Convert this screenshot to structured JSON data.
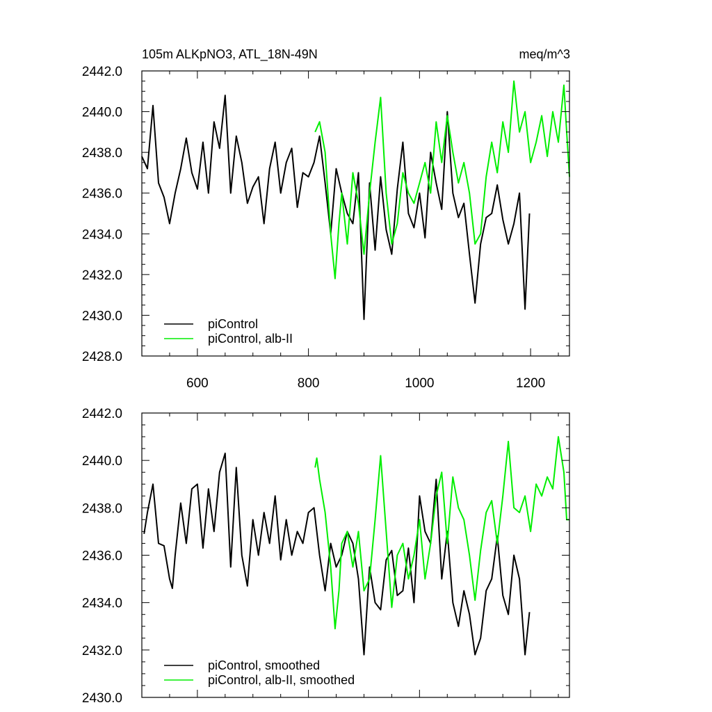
{
  "page": {
    "header_left": "105m ALKpNO3, ATL_18N-49N",
    "header_right": "meq/m^3"
  },
  "colors": {
    "picontrol": "#000000",
    "alb": "#00ee00",
    "frame": "#000000"
  },
  "chart_data": [
    {
      "type": "line",
      "title": "105m ALKpNO3, ATL_18N-49N",
      "units": "meq/m^3",
      "xlim": [
        500,
        1270
      ],
      "ylim": [
        2428.0,
        2442.0
      ],
      "x_ticks": [
        600,
        800,
        1000,
        1200
      ],
      "x_tick_labels": [
        "600",
        "800",
        "1000",
        "1200"
      ],
      "y_ticks": [
        2428.0,
        2430.0,
        2432.0,
        2434.0,
        2436.0,
        2438.0,
        2440.0,
        2442.0
      ],
      "y_tick_labels": [
        "2428.0",
        "2430.0",
        "2432.0",
        "2434.0",
        "2436.0",
        "2438.0",
        "2440.0",
        "2442.0"
      ],
      "legend_position": "bottom-left",
      "series": [
        {
          "name": "piControl",
          "color": "#000000",
          "x": [
            500,
            510,
            520,
            530,
            540,
            550,
            560,
            570,
            580,
            590,
            600,
            610,
            620,
            630,
            640,
            650,
            660,
            670,
            680,
            690,
            700,
            710,
            720,
            730,
            740,
            750,
            760,
            770,
            780,
            790,
            800,
            810,
            820,
            830,
            840,
            850,
            860,
            870,
            880,
            890,
            900,
            910,
            920,
            930,
            940,
            950,
            960,
            970,
            980,
            990,
            1000,
            1010,
            1020,
            1030,
            1040,
            1050,
            1060,
            1070,
            1080,
            1090,
            1100,
            1110,
            1120,
            1130,
            1140,
            1150,
            1160,
            1170,
            1180,
            1190,
            1198
          ],
          "y": [
            2437.8,
            2437.2,
            2440.3,
            2436.5,
            2435.8,
            2434.5,
            2436.0,
            2437.2,
            2438.7,
            2437.0,
            2436.2,
            2438.5,
            2436.0,
            2439.5,
            2438.2,
            2440.8,
            2436.0,
            2438.8,
            2437.5,
            2435.5,
            2436.3,
            2436.8,
            2434.5,
            2437.2,
            2438.5,
            2436.0,
            2437.5,
            2438.2,
            2435.3,
            2437.0,
            2436.8,
            2437.5,
            2438.8,
            2436.5,
            2434.0,
            2437.2,
            2436.0,
            2435.0,
            2434.5,
            2437.0,
            2429.8,
            2436.5,
            2433.2,
            2436.8,
            2434.2,
            2433.0,
            2436.2,
            2438.5,
            2435.0,
            2434.3,
            2436.0,
            2433.8,
            2438.0,
            2436.5,
            2435.2,
            2440.0,
            2436.0,
            2434.8,
            2435.5,
            2433.0,
            2430.6,
            2433.5,
            2434.8,
            2435.0,
            2436.4,
            2434.7,
            2433.5,
            2434.5,
            2436.0,
            2430.3,
            2435.0
          ]
        },
        {
          "name": "piControl, alb-II",
          "color": "#00ee00",
          "x": [
            812,
            820,
            830,
            840,
            848,
            855,
            860,
            870,
            880,
            890,
            900,
            910,
            920,
            930,
            940,
            950,
            960,
            970,
            980,
            990,
            1000,
            1010,
            1020,
            1030,
            1040,
            1050,
            1060,
            1070,
            1080,
            1090,
            1100,
            1110,
            1120,
            1130,
            1140,
            1150,
            1160,
            1170,
            1180,
            1190,
            1200,
            1210,
            1220,
            1230,
            1240,
            1250,
            1260,
            1265,
            1270
          ],
          "y": [
            2439.0,
            2439.5,
            2438.0,
            2434.0,
            2431.8,
            2434.5,
            2436.0,
            2433.5,
            2437.0,
            2435.5,
            2433.0,
            2436.0,
            2438.5,
            2440.7,
            2436.0,
            2433.5,
            2434.5,
            2437.0,
            2436.0,
            2435.5,
            2436.5,
            2437.5,
            2436.0,
            2439.5,
            2437.5,
            2439.8,
            2438.0,
            2436.5,
            2437.5,
            2436.0,
            2433.5,
            2434.0,
            2436.8,
            2438.5,
            2437.0,
            2439.5,
            2438.0,
            2441.5,
            2439.0,
            2440.0,
            2437.5,
            2438.5,
            2439.8,
            2437.8,
            2440.0,
            2438.5,
            2441.3,
            2439.0,
            2436.8
          ]
        }
      ]
    },
    {
      "type": "line",
      "xlim": [
        500,
        1270
      ],
      "ylim": [
        2430.0,
        2442.0
      ],
      "x_ticks": [
        600,
        800,
        1000,
        1200
      ],
      "y_ticks": [
        2430.0,
        2432.0,
        2434.0,
        2436.0,
        2438.0,
        2440.0,
        2442.0
      ],
      "y_tick_labels": [
        "2430.0",
        "2432.0",
        "2434.0",
        "2436.0",
        "2438.0",
        "2440.0",
        "2442.0"
      ],
      "legend_position": "bottom-left",
      "series": [
        {
          "name": "piControl, smoothed",
          "color": "#000000",
          "x": [
            504,
            510,
            520,
            530,
            540,
            550,
            555,
            560,
            570,
            580,
            590,
            600,
            610,
            620,
            630,
            640,
            650,
            660,
            670,
            680,
            690,
            700,
            710,
            720,
            730,
            740,
            750,
            760,
            770,
            780,
            790,
            800,
            810,
            820,
            830,
            840,
            850,
            860,
            870,
            880,
            890,
            900,
            910,
            920,
            930,
            940,
            950,
            960,
            970,
            980,
            990,
            1000,
            1010,
            1020,
            1030,
            1040,
            1050,
            1060,
            1070,
            1080,
            1090,
            1100,
            1110,
            1120,
            1130,
            1140,
            1150,
            1160,
            1170,
            1180,
            1190,
            1198
          ],
          "y": [
            2436.9,
            2437.8,
            2439.0,
            2436.5,
            2436.4,
            2435.0,
            2434.6,
            2436.0,
            2438.2,
            2436.5,
            2438.8,
            2439.0,
            2436.3,
            2438.8,
            2437.0,
            2439.5,
            2440.3,
            2435.5,
            2439.7,
            2436.0,
            2434.7,
            2437.5,
            2436.0,
            2437.8,
            2436.5,
            2438.5,
            2435.8,
            2437.5,
            2436.0,
            2437.0,
            2436.5,
            2437.8,
            2438.0,
            2436.0,
            2434.5,
            2436.5,
            2435.5,
            2436.0,
            2437.0,
            2436.5,
            2435.0,
            2431.8,
            2435.5,
            2434.0,
            2433.7,
            2435.8,
            2436.2,
            2434.3,
            2434.5,
            2436.3,
            2434.0,
            2438.5,
            2437.0,
            2436.5,
            2439.2,
            2435.0,
            2437.0,
            2434.0,
            2433.0,
            2434.5,
            2433.5,
            2431.8,
            2432.5,
            2434.5,
            2435.0,
            2436.8,
            2434.3,
            2433.5,
            2436.0,
            2435.0,
            2431.8,
            2433.6
          ]
        },
        {
          "name": "piControl, alb-II, smoothed",
          "color": "#00ee00",
          "x": [
            812,
            815,
            820,
            830,
            840,
            848,
            855,
            860,
            870,
            880,
            890,
            900,
            910,
            920,
            930,
            940,
            950,
            960,
            970,
            980,
            990,
            1000,
            1010,
            1020,
            1030,
            1040,
            1050,
            1060,
            1070,
            1080,
            1090,
            1100,
            1110,
            1120,
            1130,
            1140,
            1150,
            1160,
            1170,
            1180,
            1190,
            1200,
            1210,
            1220,
            1230,
            1240,
            1250,
            1260,
            1265,
            1270
          ],
          "y": [
            2439.7,
            2440.1,
            2439.2,
            2437.8,
            2435.5,
            2432.9,
            2434.5,
            2436.5,
            2437.0,
            2435.5,
            2437.0,
            2434.5,
            2435.0,
            2437.5,
            2440.2,
            2437.0,
            2433.8,
            2436.0,
            2436.5,
            2435.0,
            2436.0,
            2437.5,
            2435.0,
            2436.5,
            2438.5,
            2439.5,
            2436.5,
            2439.3,
            2438.0,
            2437.5,
            2436.0,
            2434.1,
            2436.2,
            2437.8,
            2438.3,
            2436.5,
            2438.5,
            2440.8,
            2438.0,
            2437.8,
            2438.5,
            2437.0,
            2439.0,
            2438.5,
            2439.3,
            2438.8,
            2441.0,
            2439.5,
            2437.5,
            2437.5
          ]
        }
      ]
    }
  ]
}
